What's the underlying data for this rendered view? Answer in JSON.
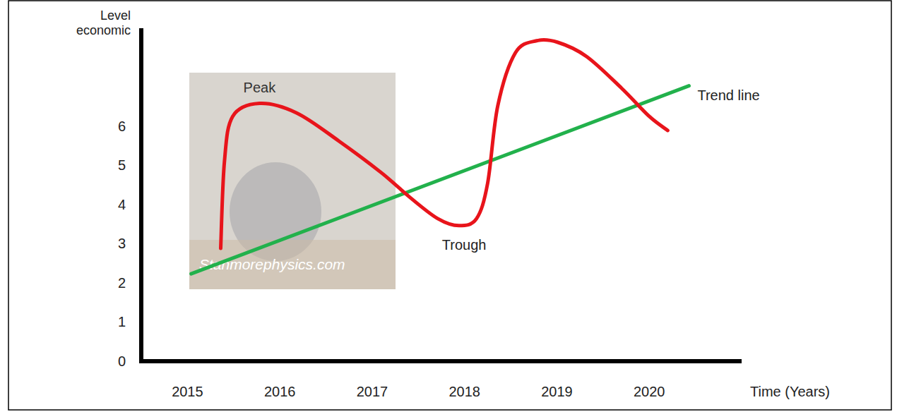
{
  "chart_data": {
    "type": "line",
    "y_label": "Level economic",
    "x_label": "Time (Years)",
    "watermark": "Stanmorephysics.com",
    "annotations": [
      "Peak",
      "Trough"
    ],
    "xlim": [
      2014.5,
      2021
    ],
    "xticks": [
      2015,
      2016,
      2017,
      2018,
      2019,
      2020
    ],
    "ylim": [
      0,
      8.5
    ],
    "yticks": [
      0,
      1,
      2,
      3,
      4,
      5,
      6
    ],
    "grid": false,
    "series": [
      {
        "color": "#e8141b",
        "x": [
          2015.36,
          2015.4,
          2015.49,
          2015.78,
          2016.18,
          2016.64,
          2017.1,
          2017.41,
          2017.71,
          2017.94,
          2018.13,
          2018.25,
          2018.36,
          2018.55,
          2018.78,
          2019.01,
          2019.32,
          2019.7,
          2020.0,
          2020.2
        ],
        "values": [
          2.88,
          5.08,
          6.25,
          6.58,
          6.34,
          5.62,
          4.81,
          4.18,
          3.64,
          3.46,
          3.64,
          4.54,
          6.52,
          7.87,
          8.18,
          8.14,
          7.78,
          6.97,
          6.25,
          5.89
        ]
      },
      {
        "name": "Trend line",
        "color": "#22b14c",
        "x": [
          2015.04,
          2020.43
        ],
        "values": [
          2.23,
          7.03
        ]
      }
    ]
  }
}
